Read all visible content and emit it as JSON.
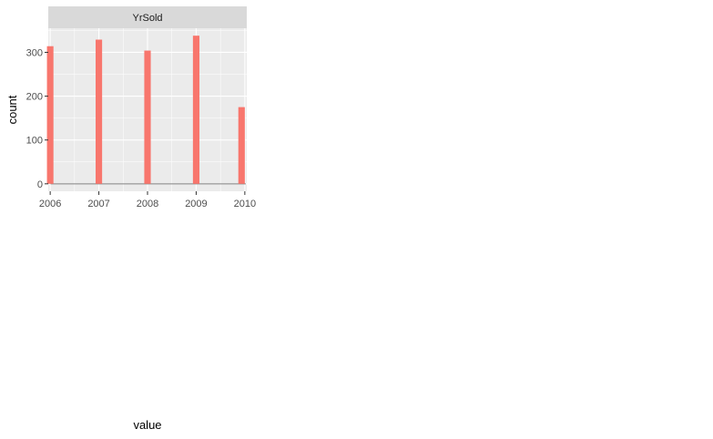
{
  "chart_data": {
    "type": "bar",
    "facet_label": "YrSold",
    "xlabel": "value",
    "ylabel": "count",
    "x_ticks": [
      "2006",
      "2007",
      "2008",
      "2009",
      "2010"
    ],
    "y_ticks": [
      "0",
      "100",
      "200",
      "300"
    ],
    "xlim": [
      2005.96,
      2010.04
    ],
    "ylim": [
      -17,
      355
    ],
    "bin_width": 0.1333,
    "bins": [
      {
        "x": 2006,
        "count": 314
      },
      {
        "x": 2007,
        "count": 329
      },
      {
        "x": 2008,
        "count": 304
      },
      {
        "x": 2009,
        "count": 338
      },
      {
        "x": 2010,
        "count": 175
      }
    ],
    "zero_bin_line": true,
    "grid": true,
    "colors": {
      "bar_fill": "#f8766d",
      "panel_bg": "#ebebeb",
      "strip_bg": "#d9d9d9",
      "grid_major": "#ffffff",
      "zero_line": "#7f7f7f"
    }
  }
}
